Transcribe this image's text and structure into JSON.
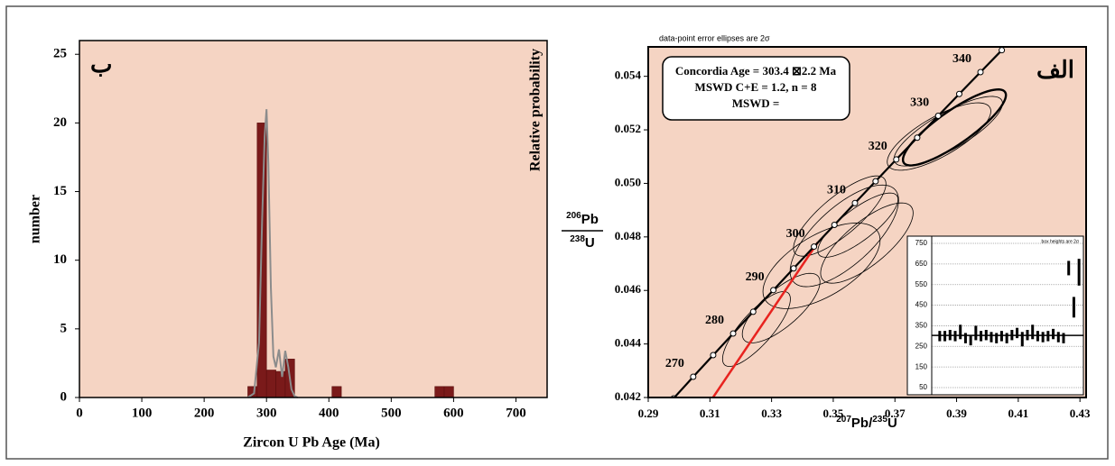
{
  "chart_data": [
    {
      "type": "histogram",
      "corner_label": "ب",
      "xlabel": "Zircon U Pb Age (Ma)",
      "ylabel": "number",
      "y2label": "Relative probability",
      "bins": [
        270,
        285,
        300,
        315,
        330,
        345,
        360,
        375,
        390,
        405,
        420,
        435,
        450,
        465,
        480,
        495,
        510,
        525,
        540,
        555,
        570,
        585,
        600
      ],
      "values": [
        0.8,
        20,
        2,
        1.9,
        2.8,
        0,
        0,
        0,
        0,
        0.8,
        0,
        0,
        0,
        0,
        0,
        0,
        0,
        0,
        0,
        0,
        0.8,
        0.8
      ],
      "color": "#7a1a1a",
      "probability_curve": {
        "color": "#8c8c8c",
        "x": [
          270,
          280,
          288,
          293,
          297,
          300,
          303,
          307,
          311,
          315,
          320,
          325,
          330,
          335,
          340,
          345,
          350
        ],
        "y": [
          0,
          0.3,
          4,
          13,
          19,
          21,
          17,
          8,
          3,
          2.2,
          3.5,
          1.5,
          3.4,
          2.2,
          0.6,
          0.1,
          0
        ]
      },
      "xlim": [
        0,
        750
      ],
      "xticks": [
        0,
        100,
        200,
        300,
        400,
        500,
        600,
        700
      ],
      "ylim": [
        0,
        26
      ],
      "yticks": [
        0,
        5,
        10,
        15,
        20,
        25
      ]
    },
    {
      "type": "concordia",
      "title": "data-point error ellipses are 2σ",
      "corner_label": "الف",
      "box_lines": [
        "Concordia  Age = 303.4 ⊠2.2 Ma",
        "MSWD C+E = 1.2, n = 8",
        "MSWD ="
      ],
      "xlabel": {
        "mass": "207",
        "element": "Pb/",
        "mass2": "235",
        "element2": "U"
      },
      "ylabel": {
        "num_mass": "206",
        "num": "Pb",
        "den_mass": "238",
        "den": "U"
      },
      "concordia": {
        "color": "#000000",
        "x": [
          0.2982,
          0.30459,
          0.31106,
          0.31753,
          0.32404,
          0.33058,
          0.33715,
          0.34375,
          0.35038,
          0.35704,
          0.36373,
          0.37044,
          0.37723,
          0.38403,
          0.39086,
          0.39775,
          0.40466
        ],
        "y": [
          0.041965,
          0.042774,
          0.043582,
          0.044392,
          0.045202,
          0.046013,
          0.046825,
          0.047638,
          0.04845,
          0.049264,
          0.050078,
          0.050893,
          0.051708,
          0.052524,
          0.053341,
          0.054158,
          0.054976
        ],
        "ages": [
          null,
          270,
          null,
          280,
          null,
          290,
          null,
          300,
          null,
          310,
          null,
          320,
          null,
          330,
          null,
          340,
          null
        ]
      },
      "red_line": {
        "color": "#e8231f",
        "x": [
          0.311,
          0.345
        ],
        "y": [
          0.042,
          0.0478
        ]
      },
      "ellipses": [
        {
          "cx": 0.3893,
          "cy": 0.05209,
          "sx": 0.0167,
          "sy": 0.00142,
          "rho": 0.85,
          "bold": true
        },
        {
          "cx": 0.3873,
          "cy": 0.05195,
          "sx": 0.0176,
          "sy": 0.0013,
          "rho": 0.8,
          "bold": false
        },
        {
          "cx": 0.3843,
          "cy": 0.05175,
          "sx": 0.0168,
          "sy": 0.00126,
          "rho": 0.75,
          "bold": false
        },
        {
          "cx": 0.3536,
          "cy": 0.04804,
          "sx": 0.0176,
          "sy": 0.0019,
          "rho": 0.7,
          "bold": false
        },
        {
          "cx": 0.3609,
          "cy": 0.04777,
          "sx": 0.015,
          "sy": 0.0015,
          "rho": 0.75,
          "bold": false
        },
        {
          "cx": 0.3521,
          "cy": 0.04878,
          "sx": 0.015,
          "sy": 0.0015,
          "rho": 0.8,
          "bold": false
        },
        {
          "cx": 0.358,
          "cy": 0.04844,
          "sx": 0.013,
          "sy": 0.0012,
          "rho": 0.8,
          "bold": false
        },
        {
          "cx": 0.3462,
          "cy": 0.04692,
          "sx": 0.019,
          "sy": 0.0016,
          "rho": 0.6,
          "bold": false
        },
        {
          "cx": 0.3331,
          "cy": 0.04534,
          "sx": 0.0126,
          "sy": 0.0013,
          "rho": 0.75,
          "bold": false
        },
        {
          "cx": 0.3251,
          "cy": 0.04456,
          "sx": 0.011,
          "sy": 0.0014,
          "rho": 0.8,
          "bold": false
        }
      ],
      "xlim": [
        0.29,
        0.432
      ],
      "xticks": [
        0.29,
        0.31,
        0.33,
        0.35,
        0.37,
        0.39,
        0.41,
        0.43
      ],
      "ylim": [
        0.042,
        0.0551
      ],
      "yticks": [
        0.042,
        0.044,
        0.046,
        0.048,
        {
          "value": 0.05,
          "label": "0.050"
        },
        0.052,
        0.054
      ]
    },
    {
      "type": "errorbar",
      "title": "box heights are 2σ",
      "values": [
        300,
        300,
        305,
        300,
        320,
        290,
        280,
        315,
        300,
        305,
        295,
        290,
        300,
        290,
        305,
        315,
        285,
        305,
        320,
        300,
        295,
        300,
        310,
        295,
        290,
        630,
        440,
        610
      ],
      "errors": [
        25,
        25,
        25,
        25,
        35,
        25,
        25,
        35,
        25,
        25,
        25,
        25,
        25,
        25,
        25,
        25,
        35,
        25,
        35,
        25,
        25,
        25,
        25,
        25,
        25,
        35,
        50,
        65
      ],
      "mean": 303.4,
      "color": "#000000",
      "ylim": [
        15,
        785
      ],
      "yticks": [
        50,
        150,
        250,
        350,
        450,
        550,
        650,
        750
      ]
    }
  ]
}
